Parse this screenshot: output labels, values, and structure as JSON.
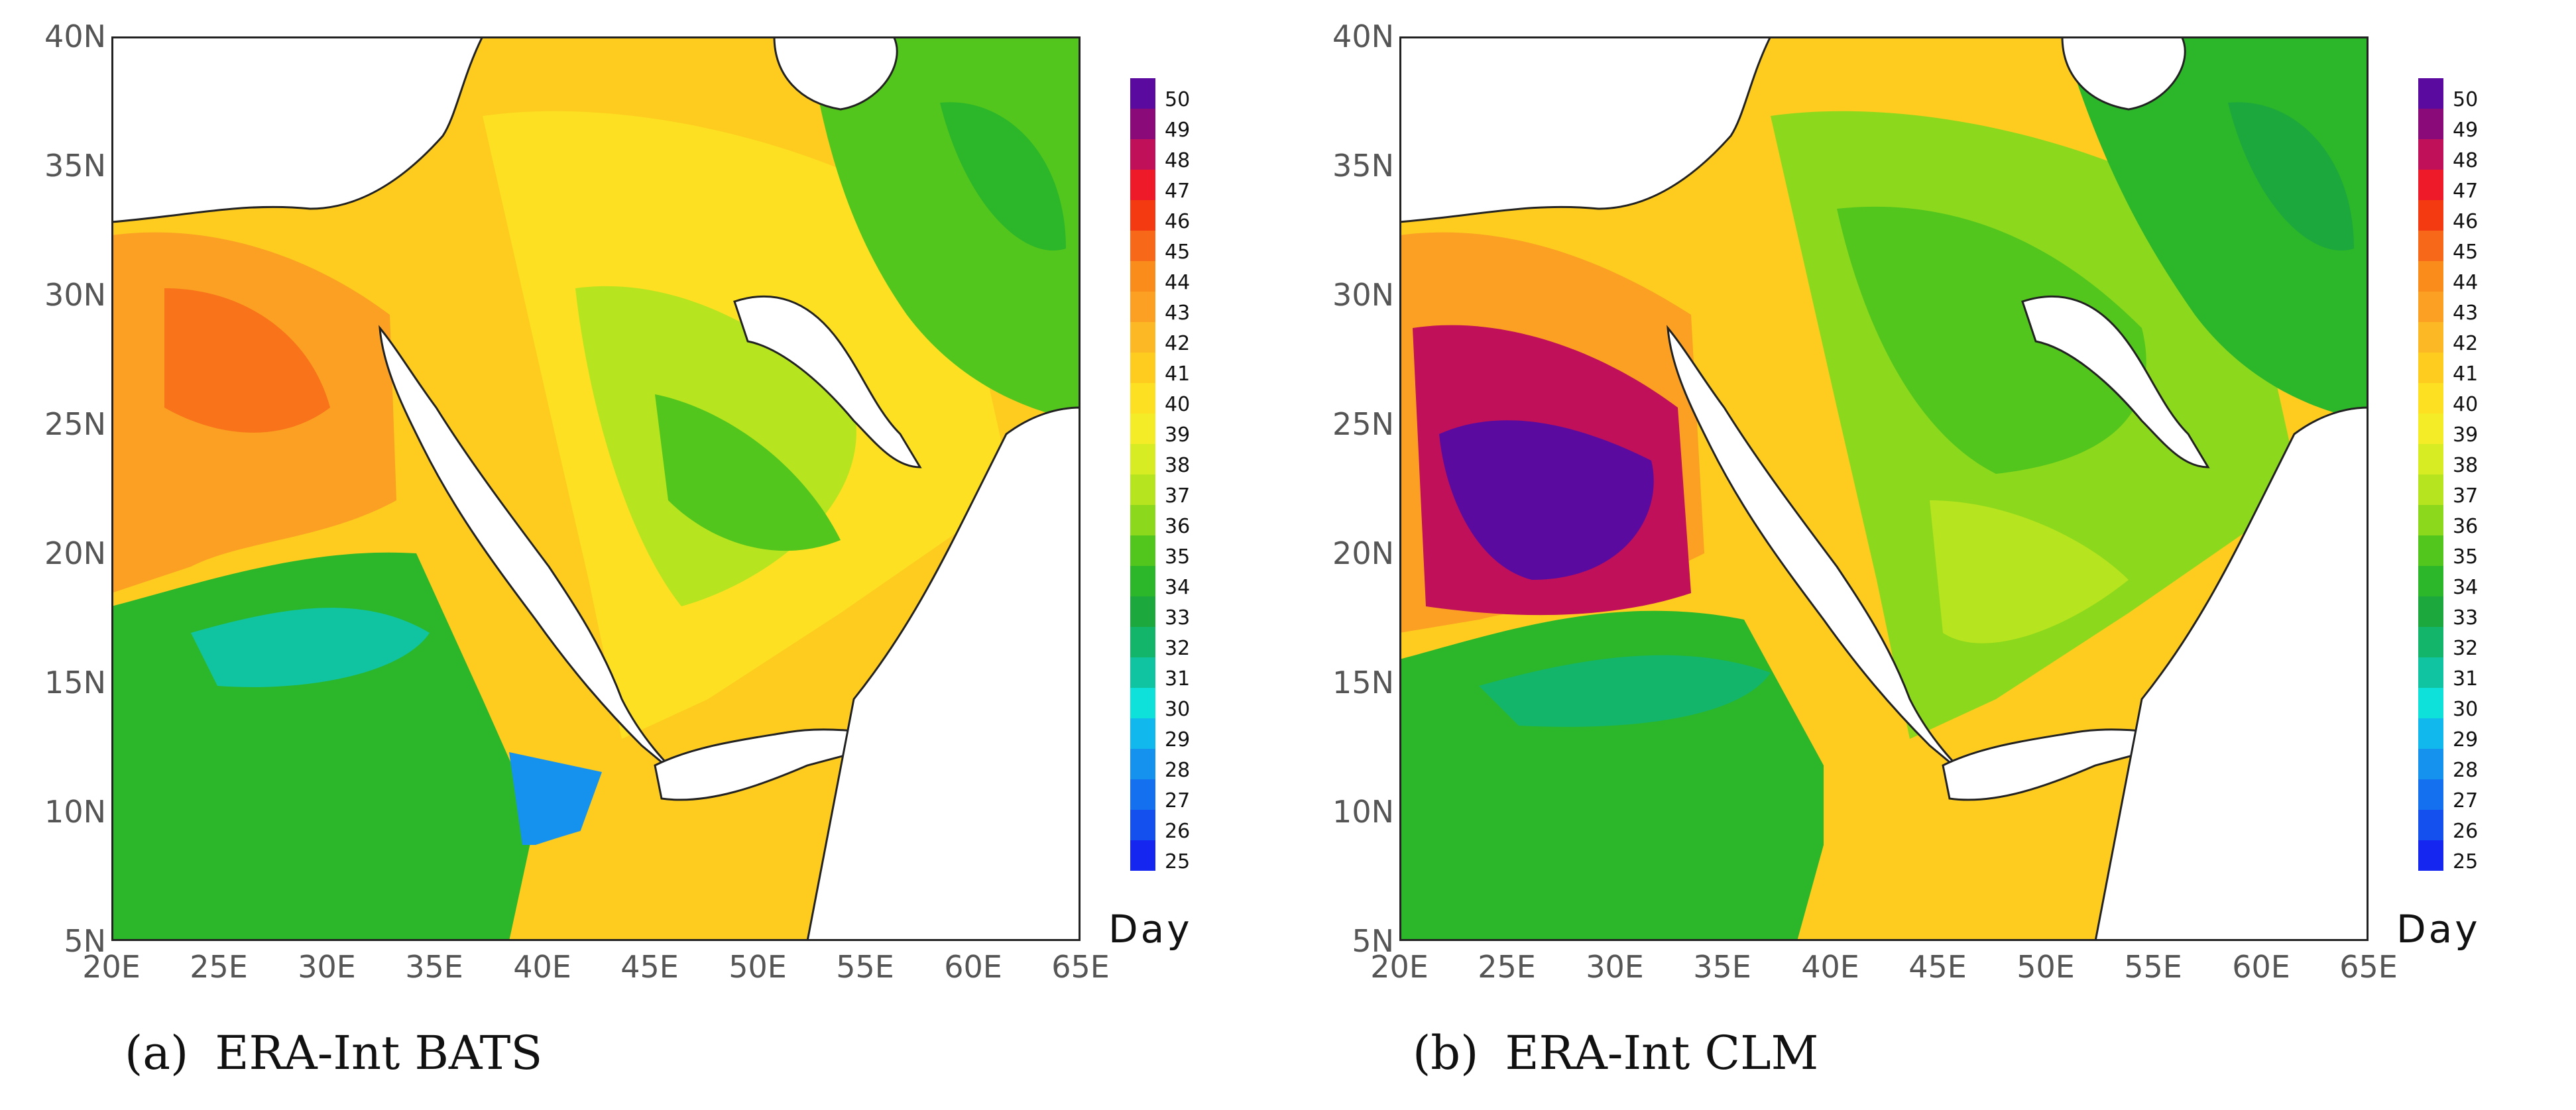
{
  "colors": {
    "land": "#f5d21e",
    "sea": "#ffffff",
    "coast": "#222222",
    "axis_text": "#555555"
  },
  "axes": {
    "y_labels": [
      "40N",
      "35N",
      "30N",
      "25N",
      "20N",
      "15N",
      "10N",
      "5N"
    ],
    "x_labels": [
      "20E",
      "25E",
      "30E",
      "35E",
      "40E",
      "45E",
      "50E",
      "55E",
      "60E",
      "65E"
    ],
    "lon_range": [
      20,
      65
    ],
    "lat_range": [
      5,
      40
    ]
  },
  "colorbar": {
    "unit_label": "Day",
    "levels": [
      "50",
      "49",
      "48",
      "47",
      "46",
      "45",
      "44",
      "43",
      "42",
      "41",
      "40",
      "39",
      "38",
      "37",
      "36",
      "35",
      "34",
      "33",
      "32",
      "31",
      "30",
      "29",
      "28",
      "27",
      "26",
      "25"
    ],
    "colors": [
      "#5b0aa0",
      "#8a0a7a",
      "#c0105a",
      "#ee1a2a",
      "#f43a10",
      "#f76818",
      "#fa8c1c",
      "#fba022",
      "#fdb825",
      "#fdcc1f",
      "#fde022",
      "#f3ec26",
      "#d8ec24",
      "#b6e41e",
      "#8cd81c",
      "#52c61c",
      "#2cb62a",
      "#1ca83c",
      "#12b56a",
      "#10c4a2",
      "#0ee0da",
      "#10b8ee",
      "#1492ee",
      "#1470ee",
      "#1450ee",
      "#1426f0"
    ]
  },
  "panels": [
    {
      "tag": "(a)",
      "title": "ERA-Int BATS",
      "regions": [
        {
          "name": "libya-egypt-desert",
          "color": "#fba022"
        },
        {
          "name": "sahara-core",
          "color": "#f76818"
        },
        {
          "name": "arabia-north",
          "color": "#fde022"
        },
        {
          "name": "arabia-central",
          "color": "#b6e41e"
        },
        {
          "name": "arabia-green-patch",
          "color": "#52c61c"
        },
        {
          "name": "iran",
          "color": "#52c61c"
        },
        {
          "name": "sahel-south",
          "color": "#2cb62a"
        },
        {
          "name": "ethiopia-cyan",
          "color": "#10c4a2"
        },
        {
          "name": "somalia",
          "color": "#fdcc1f"
        }
      ]
    },
    {
      "tag": "(b)",
      "title": "ERA-Int CLM",
      "regions": [
        {
          "name": "libya-egypt-desert",
          "color": "#fba022"
        },
        {
          "name": "sahara-hot-core",
          "color": "#c0105a"
        },
        {
          "name": "sahara-purple",
          "color": "#5b0aa0"
        },
        {
          "name": "arabia-north",
          "color": "#8cd81c"
        },
        {
          "name": "arabia-central",
          "color": "#52c61c"
        },
        {
          "name": "iran",
          "color": "#2cb62a"
        },
        {
          "name": "sahel-south",
          "color": "#2cb62a"
        },
        {
          "name": "ethiopia-cyan",
          "color": "#12b56a"
        },
        {
          "name": "somalia",
          "color": "#fdcc1f"
        }
      ]
    }
  ]
}
